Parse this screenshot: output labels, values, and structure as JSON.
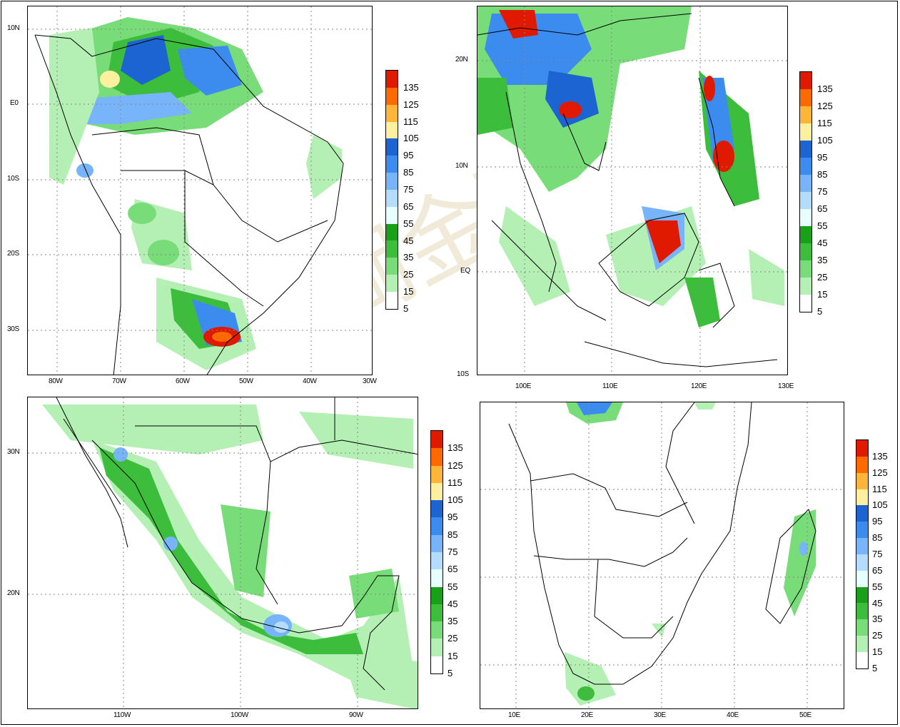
{
  "legend": {
    "labels": [
      "135",
      "125",
      "115",
      "105",
      "95",
      "85",
      "75",
      "65",
      "55",
      "45",
      "35",
      "25",
      "15",
      "5"
    ],
    "colors": [
      "#e01a00",
      "#ff6a00",
      "#ffb43a",
      "#fff0a0",
      "#1c64d2",
      "#3c8cf0",
      "#78b4fa",
      "#b4dcff",
      "#e6ffff",
      "#18a018",
      "#3cbe3c",
      "#78dc78",
      "#b4f0b4",
      "#ffffff"
    ]
  },
  "watermark": "珊瑚金融网",
  "panels": [
    {
      "id": "south-america",
      "lat_ticks": [
        "10N",
        "E0",
        "10S",
        "20S",
        "30S"
      ],
      "lon_ticks": [
        "80W",
        "70W",
        "60W",
        "50W",
        "40W",
        "30W"
      ]
    },
    {
      "id": "southeast-asia",
      "lat_ticks": [
        "20N",
        "10N",
        "EQ",
        "10S"
      ],
      "lon_ticks": [
        "100E",
        "110E",
        "120E",
        "130E"
      ]
    },
    {
      "id": "mexico",
      "lat_ticks": [
        "30N",
        "20N"
      ],
      "lon_ticks": [
        "110W",
        "100W",
        "90W"
      ]
    },
    {
      "id": "southern-africa",
      "lat_ticks": [],
      "lon_ticks": [
        "10E",
        "20E",
        "30E",
        "40E",
        "50E"
      ]
    }
  ]
}
